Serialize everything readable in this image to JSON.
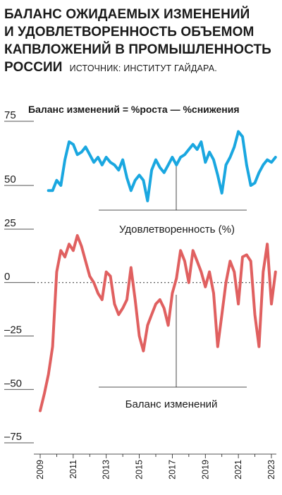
{
  "title": {
    "line1": "БАЛАНС ОЖИДАЕМЫХ ИЗМЕНЕНИЙ",
    "line2": "И УДОВЛЕТВОРЕННОСТЬ ОБЪЕМОМ",
    "line3": "КАПВЛОЖЕНИЙ В ПРОМЫШЛЕННОСТЬ",
    "line4": "РОССИИ",
    "source": "ИСТОЧНИК: ИНСТИТУТ ГАЙДАРА."
  },
  "colors": {
    "satisfaction": "#1aa7e0",
    "balance": "#e06060",
    "text": "#1a1a1a"
  },
  "chart_data": [
    {
      "type": "line",
      "title": "",
      "subtitle": "Баланс изменений = %роста — %снижения",
      "series": [
        {
          "name": "Удовлетворенность (%)",
          "x": [
            2009.5,
            2009.75,
            2010,
            2010.25,
            2010.5,
            2010.75,
            2011,
            2011.25,
            2011.5,
            2011.75,
            2012,
            2012.25,
            2012.5,
            2012.75,
            2013,
            2013.25,
            2013.5,
            2013.75,
            2014,
            2014.25,
            2014.5,
            2014.75,
            2015,
            2015.25,
            2015.5,
            2015.75,
            2016,
            2016.25,
            2016.5,
            2016.75,
            2017,
            2017.25,
            2017.5,
            2017.75,
            2018,
            2018.25,
            2018.5,
            2018.75,
            2019,
            2019.25,
            2019.5,
            2019.75,
            2020,
            2020.25,
            2020.5,
            2020.75,
            2021,
            2021.25,
            2021.5,
            2021.75,
            2022,
            2022.25,
            2022.5,
            2022.75,
            2023,
            2023.25
          ],
          "values": [
            48,
            48,
            52,
            50,
            60,
            67,
            66,
            62,
            63,
            65,
            62,
            59,
            61,
            58,
            61,
            59,
            58,
            56,
            60,
            53,
            48,
            52,
            54,
            52,
            44,
            56,
            60,
            57,
            55,
            58,
            61,
            58,
            61,
            62,
            64,
            66,
            64,
            67,
            59,
            63,
            60,
            54,
            47,
            58,
            61,
            65,
            71,
            69,
            58,
            50,
            51,
            55,
            58,
            60,
            59,
            61
          ]
        }
      ],
      "ylim": [
        45,
        75
      ],
      "yticks": [
        "75",
        "50"
      ]
    },
    {
      "type": "line",
      "title": "",
      "series": [
        {
          "name": "Баланс изменений",
          "x": [
            2009,
            2009.25,
            2009.5,
            2009.75,
            2010,
            2010.25,
            2010.5,
            2010.75,
            2011,
            2011.25,
            2011.5,
            2011.75,
            2012,
            2012.25,
            2012.5,
            2012.75,
            2013,
            2013.25,
            2013.5,
            2013.75,
            2014,
            2014.25,
            2014.5,
            2014.75,
            2015,
            2015.25,
            2015.5,
            2015.75,
            2016,
            2016.25,
            2016.5,
            2016.75,
            2017,
            2017.25,
            2017.5,
            2017.75,
            2018,
            2018.25,
            2018.5,
            2018.75,
            2019,
            2019.25,
            2019.5,
            2019.75,
            2020,
            2020.25,
            2020.5,
            2020.75,
            2021,
            2021.25,
            2021.5,
            2021.75,
            2022,
            2022.25,
            2022.5,
            2022.75,
            2023,
            2023.25
          ],
          "values": [
            -60,
            -52,
            -43,
            -30,
            5,
            15,
            12,
            18,
            15,
            22,
            17,
            10,
            3,
            0,
            -5,
            -8,
            5,
            3,
            -10,
            -15,
            -12,
            -8,
            7,
            -8,
            -25,
            -32,
            -20,
            -15,
            -10,
            -8,
            -12,
            -20,
            -5,
            2,
            15,
            10,
            0,
            15,
            10,
            5,
            -2,
            5,
            -5,
            -30,
            -15,
            0,
            10,
            5,
            -10,
            12,
            13,
            10,
            -15,
            -30,
            5,
            18,
            -10,
            5
          ]
        }
      ],
      "ylim": [
        -75,
        25
      ],
      "yticks": [
        "25",
        "0",
        "–25",
        "–50",
        "–75"
      ],
      "zero_line": "dotted"
    }
  ],
  "x_axis": {
    "ticks": [
      "2009",
      "2011",
      "2013",
      "2015",
      "2017",
      "2019",
      "2021",
      "2023"
    ]
  }
}
